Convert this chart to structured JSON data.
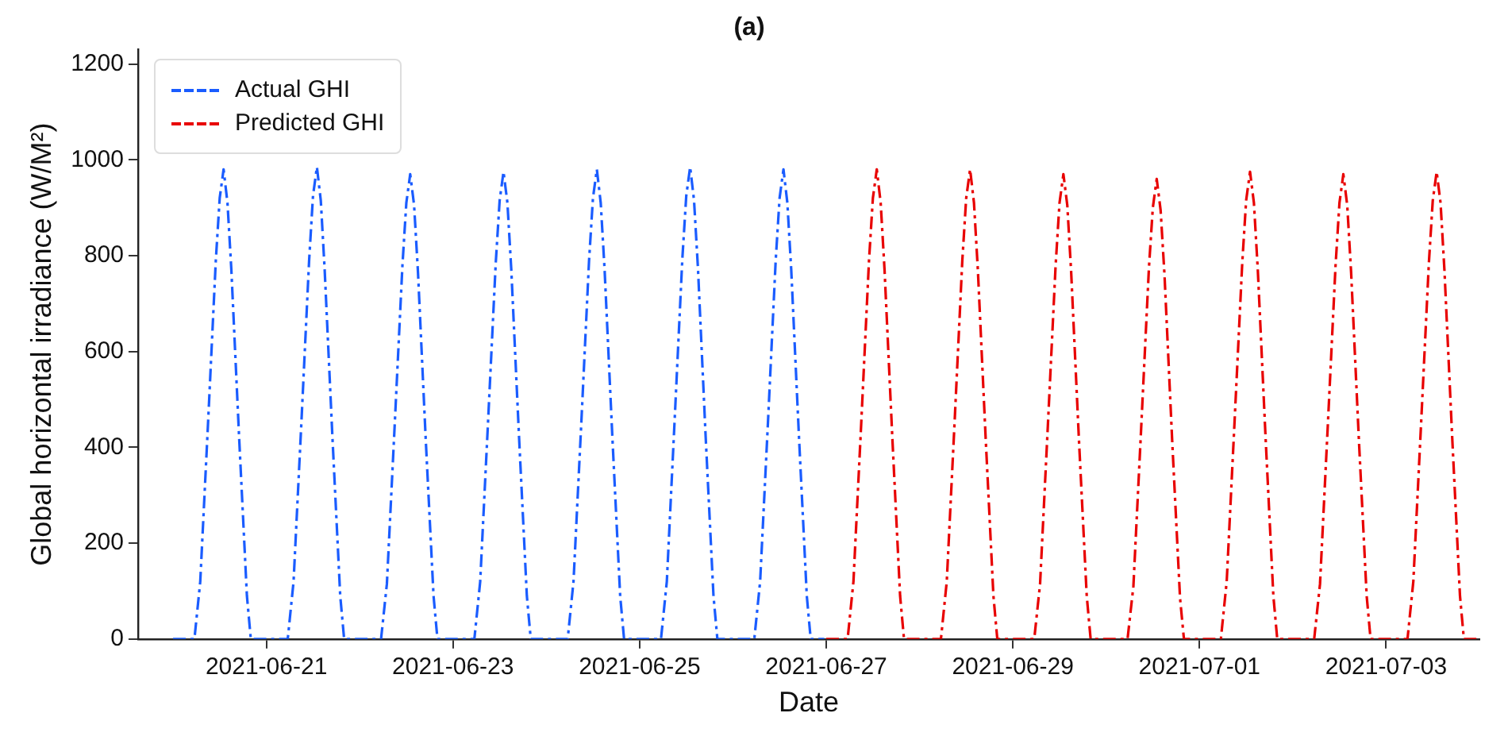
{
  "chart_data": {
    "type": "line",
    "title": "(a)",
    "xlabel": "Date",
    "ylabel": "Global horizontal irradiance (W/M²)",
    "xlim": [
      "2021-06-19T15:00",
      "2021-07-04T00:00"
    ],
    "ylim": [
      0,
      1230
    ],
    "xticks": [
      "2021-06-21",
      "2021-06-23",
      "2021-06-25",
      "2021-06-27",
      "2021-06-29",
      "2021-07-01",
      "2021-07-03"
    ],
    "yticks": [
      0,
      200,
      400,
      600,
      800,
      1000,
      1200
    ],
    "grid": false,
    "legend": "top left",
    "line_style": "dashed",
    "marker": "none",
    "series": [
      {
        "name": "Actual GHI",
        "color": "#1a5cff",
        "x": [
          "2021-06-20T00:00",
          "2021-06-20T05:30",
          "2021-06-20T07:00",
          "2021-06-20T09:00",
          "2021-06-20T11:00",
          "2021-06-20T12:00",
          "2021-06-20T13:00",
          "2021-06-20T14:00",
          "2021-06-20T15:00",
          "2021-06-20T17:00",
          "2021-06-20T19:00",
          "2021-06-20T20:00",
          "2021-06-21T05:30",
          "2021-06-21T07:00",
          "2021-06-21T09:00",
          "2021-06-21T11:00",
          "2021-06-21T12:00",
          "2021-06-21T13:00",
          "2021-06-21T14:00",
          "2021-06-21T15:00",
          "2021-06-21T17:00",
          "2021-06-21T19:00",
          "2021-06-21T20:00",
          "2021-06-22T05:30",
          "2021-06-22T07:00",
          "2021-06-22T09:00",
          "2021-06-22T11:00",
          "2021-06-22T12:00",
          "2021-06-22T13:00",
          "2021-06-22T14:00",
          "2021-06-22T15:00",
          "2021-06-22T17:00",
          "2021-06-22T19:00",
          "2021-06-22T20:00",
          "2021-06-23T05:30",
          "2021-06-23T07:00",
          "2021-06-23T09:00",
          "2021-06-23T11:00",
          "2021-06-23T12:00",
          "2021-06-23T13:00",
          "2021-06-23T14:00",
          "2021-06-23T15:00",
          "2021-06-23T17:00",
          "2021-06-23T19:00",
          "2021-06-23T20:00",
          "2021-06-24T05:30",
          "2021-06-24T07:00",
          "2021-06-24T09:00",
          "2021-06-24T11:00",
          "2021-06-24T12:00",
          "2021-06-24T13:00",
          "2021-06-24T14:00",
          "2021-06-24T15:00",
          "2021-06-24T17:00",
          "2021-06-24T19:00",
          "2021-06-24T20:00",
          "2021-06-25T05:30",
          "2021-06-25T07:00",
          "2021-06-25T09:00",
          "2021-06-25T11:00",
          "2021-06-25T12:00",
          "2021-06-25T13:00",
          "2021-06-25T14:00",
          "2021-06-25T15:00",
          "2021-06-25T17:00",
          "2021-06-25T19:00",
          "2021-06-25T20:00",
          "2021-06-26T05:30",
          "2021-06-26T07:00",
          "2021-06-26T09:00",
          "2021-06-26T11:00",
          "2021-06-26T12:00",
          "2021-06-26T13:00",
          "2021-06-26T14:00",
          "2021-06-26T15:00",
          "2021-06-26T17:00",
          "2021-06-26T19:00",
          "2021-06-26T20:00",
          "2021-06-26T23:30"
        ],
        "values": [
          0,
          0,
          120,
          450,
          790,
          920,
          980,
          910,
          770,
          420,
          90,
          0,
          0,
          120,
          450,
          790,
          925,
          985,
          915,
          770,
          420,
          90,
          0,
          0,
          115,
          445,
          780,
          910,
          970,
          905,
          765,
          415,
          90,
          0,
          0,
          120,
          450,
          785,
          915,
          975,
          910,
          770,
          420,
          90,
          0,
          0,
          120,
          450,
          790,
          920,
          980,
          910,
          770,
          420,
          90,
          0,
          0,
          120,
          455,
          795,
          925,
          985,
          915,
          775,
          420,
          90,
          0,
          0,
          120,
          450,
          790,
          920,
          980,
          910,
          770,
          420,
          90,
          0,
          0
        ]
      },
      {
        "name": "Predicted GHI",
        "color": "#e80000",
        "x": [
          "2021-06-27T00:00",
          "2021-06-27T05:30",
          "2021-06-27T07:00",
          "2021-06-27T09:00",
          "2021-06-27T11:00",
          "2021-06-27T12:00",
          "2021-06-27T13:00",
          "2021-06-27T14:00",
          "2021-06-27T15:00",
          "2021-06-27T17:00",
          "2021-06-27T19:00",
          "2021-06-27T20:00",
          "2021-06-28T05:30",
          "2021-06-28T07:00",
          "2021-06-28T09:00",
          "2021-06-28T11:00",
          "2021-06-28T12:00",
          "2021-06-28T13:00",
          "2021-06-28T14:00",
          "2021-06-28T15:00",
          "2021-06-28T17:00",
          "2021-06-28T19:00",
          "2021-06-28T20:00",
          "2021-06-29T05:30",
          "2021-06-29T07:00",
          "2021-06-29T09:00",
          "2021-06-29T11:00",
          "2021-06-29T12:00",
          "2021-06-29T13:00",
          "2021-06-29T14:00",
          "2021-06-29T15:00",
          "2021-06-29T17:00",
          "2021-06-29T19:00",
          "2021-06-29T20:00",
          "2021-06-30T05:30",
          "2021-06-30T07:00",
          "2021-06-30T09:00",
          "2021-06-30T11:00",
          "2021-06-30T12:00",
          "2021-06-30T13:00",
          "2021-06-30T14:00",
          "2021-06-30T15:00",
          "2021-06-30T17:00",
          "2021-06-30T19:00",
          "2021-06-30T20:00",
          "2021-07-01T05:30",
          "2021-07-01T07:00",
          "2021-07-01T09:00",
          "2021-07-01T11:00",
          "2021-07-01T12:00",
          "2021-07-01T13:00",
          "2021-07-01T14:00",
          "2021-07-01T15:00",
          "2021-07-01T17:00",
          "2021-07-01T19:00",
          "2021-07-01T20:00",
          "2021-07-02T05:30",
          "2021-07-02T07:00",
          "2021-07-02T09:00",
          "2021-07-02T11:00",
          "2021-07-02T12:00",
          "2021-07-02T13:00",
          "2021-07-02T14:00",
          "2021-07-02T15:00",
          "2021-07-02T17:00",
          "2021-07-02T19:00",
          "2021-07-02T20:00",
          "2021-07-03T05:30",
          "2021-07-03T07:00",
          "2021-07-03T09:00",
          "2021-07-03T11:00",
          "2021-07-03T12:00",
          "2021-07-03T13:00",
          "2021-07-03T14:00",
          "2021-07-03T15:00",
          "2021-07-03T17:00",
          "2021-07-03T19:00",
          "2021-07-03T20:00",
          "2021-07-03T23:30"
        ],
        "values": [
          0,
          0,
          120,
          450,
          790,
          920,
          980,
          910,
          770,
          420,
          90,
          0,
          0,
          120,
          450,
          790,
          920,
          980,
          910,
          770,
          420,
          90,
          0,
          0,
          115,
          445,
          780,
          910,
          970,
          905,
          765,
          415,
          90,
          0,
          0,
          110,
          440,
          775,
          900,
          960,
          895,
          760,
          410,
          85,
          0,
          0,
          120,
          450,
          785,
          915,
          975,
          910,
          770,
          420,
          90,
          0,
          0,
          115,
          445,
          780,
          910,
          970,
          905,
          765,
          415,
          90,
          0,
          0,
          120,
          450,
          785,
          915,
          975,
          910,
          770,
          420,
          90,
          0,
          0
        ]
      }
    ]
  }
}
